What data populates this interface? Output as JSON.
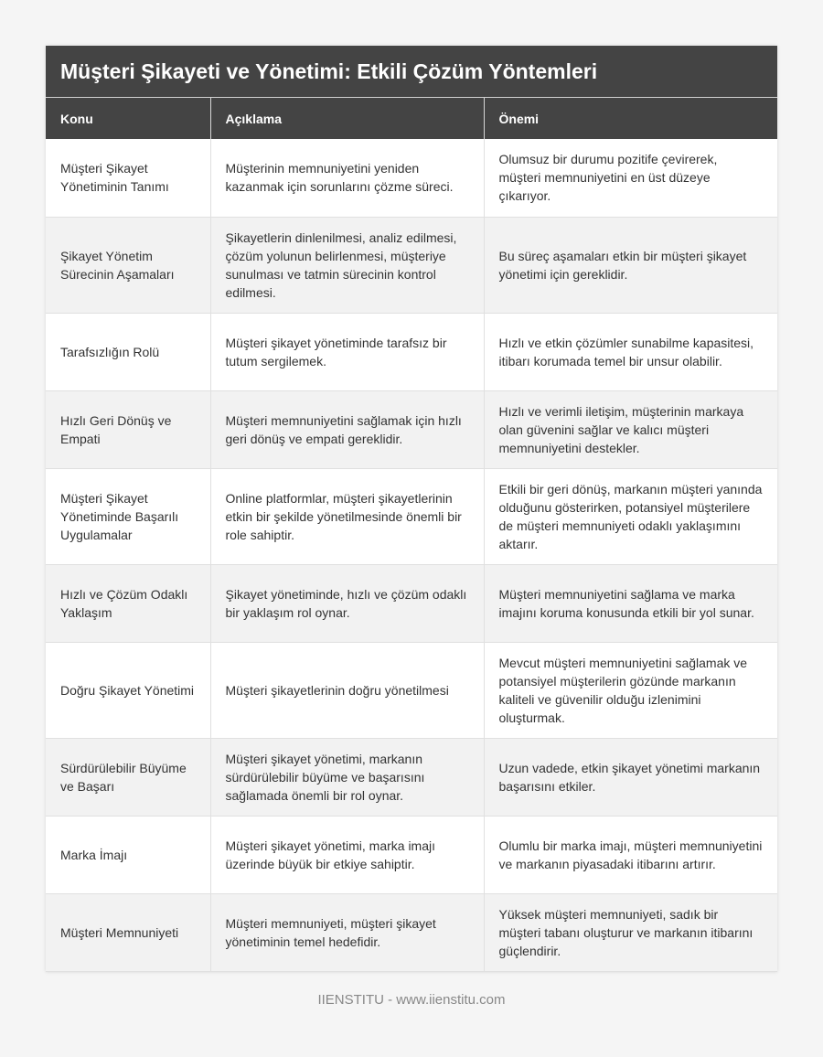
{
  "title": "Müşteri Şikayeti ve Yönetimi: Etkili Çözüm Yöntemleri",
  "columns": [
    "Konu",
    "Açıklama",
    "Önemi"
  ],
  "rows": [
    [
      "Müşteri Şikayet Yönetiminin Tanımı",
      "Müşterinin memnuniyetini yeniden kazanmak için sorunlarını çözme süreci.",
      "Olumsuz bir durumu pozitife çevirerek, müşteri memnuniyetini en üst düzeye çıkarıyor."
    ],
    [
      "Şikayet Yönetim Sürecinin Aşamaları",
      "Şikayetlerin dinlenilmesi, analiz edilmesi, çözüm yolunun belirlenmesi, müşteriye sunulması ve tatmin sürecinin kontrol edilmesi.",
      "Bu süreç aşamaları etkin bir müşteri şikayet yönetimi için gereklidir."
    ],
    [
      "Tarafsızlığın Rolü",
      "Müşteri şikayet yönetiminde tarafsız bir tutum sergilemek.",
      "Hızlı ve etkin çözümler sunabilme kapasitesi, itibarı korumada temel bir unsur olabilir."
    ],
    [
      "Hızlı Geri Dönüş ve Empati",
      "Müşteri memnuniyetini sağlamak için hızlı geri dönüş ve empati gereklidir.",
      "Hızlı ve verimli iletişim, müşterinin markaya olan güvenini sağlar ve kalıcı müşteri memnuniyetini destekler."
    ],
    [
      "Müşteri Şikayet Yönetiminde Başarılı Uygulamalar",
      "Online platformlar, müşteri şikayetlerinin etkin bir şekilde yönetilmesinde önemli bir role sahiptir.",
      "Etkili bir geri dönüş, markanın müşteri yanında olduğunu gösterirken, potansiyel müşterilere de müşteri memnuniyeti odaklı yaklaşımını aktarır."
    ],
    [
      "Hızlı ve Çözüm Odaklı Yaklaşım",
      "Şikayet yönetiminde, hızlı ve çözüm odaklı bir yaklaşım rol oynar.",
      "Müşteri memnuniyetini sağlama ve marka imajını koruma konusunda etkili bir yol sunar."
    ],
    [
      "Doğru Şikayet Yönetimi",
      "Müşteri şikayetlerinin doğru yönetilmesi",
      "Mevcut müşteri memnuniyetini sağlamak ve potansiyel müşterilerin gözünde markanın kaliteli ve güvenilir olduğu izlenimini oluşturmak."
    ],
    [
      "Sürdürülebilir Büyüme ve Başarı",
      "Müşteri şikayet yönetimi, markanın sürdürülebilir büyüme ve başarısını sağlamada önemli bir rol oynar.",
      "Uzun vadede, etkin şikayet yönetimi markanın başarısını etkiler."
    ],
    [
      "Marka İmajı",
      "Müşteri şikayet yönetimi, marka imajı üzerinde büyük bir etkiye sahiptir.",
      "Olumlu bir marka imajı, müşteri memnuniyetini ve markanın piyasadaki itibarını artırır."
    ],
    [
      "Müşteri Memnuniyeti",
      "Müşteri memnuniyeti, müşteri şikayet yönetiminin temel hedefidir.",
      "Yüksek müşteri memnuniyeti, sadık bir müşteri tabanı oluşturur ve markanın itibarını güçlendirir."
    ]
  ],
  "footer": "IIENSTITU - www.iienstitu.com",
  "colors": {
    "header_bg": "#444444",
    "alt_row_bg": "#f2f2f2"
  }
}
